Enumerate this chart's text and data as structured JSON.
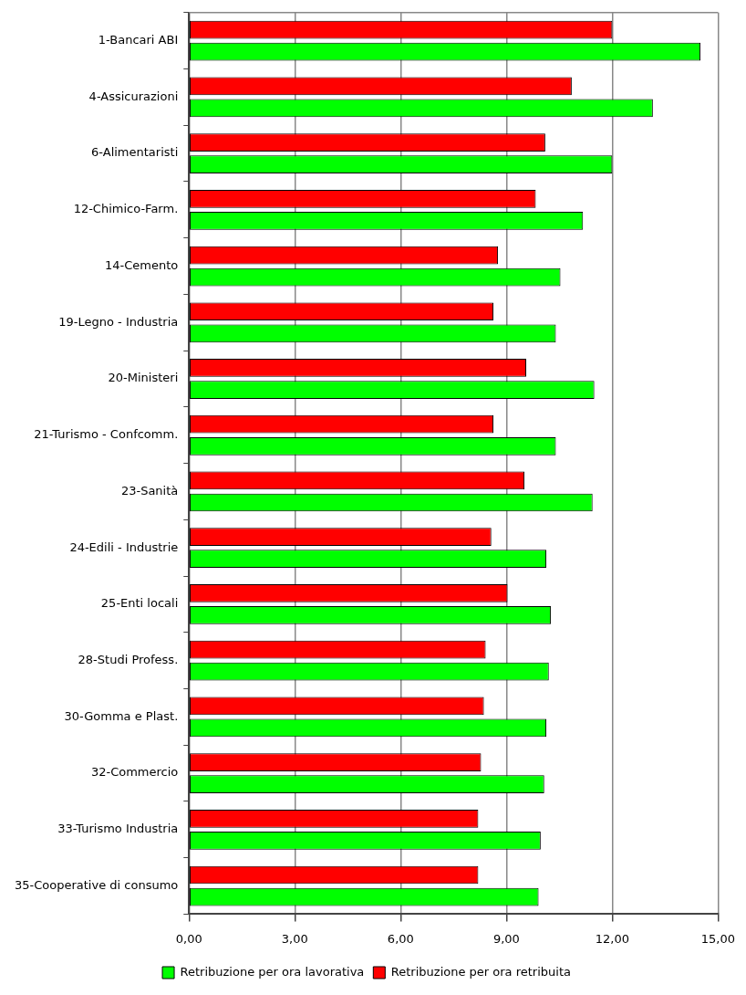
{
  "chart_data": {
    "type": "bar",
    "orientation": "horizontal",
    "categories": [
      "1-Bancari ABI",
      "4-Assicurazioni",
      "6-Alimentaristi",
      "12-Chimico-Farm.",
      "14-Cemento",
      "19-Legno - Industria",
      "20-Ministeri",
      "21-Turismo - Confcomm.",
      "23-Sanità",
      "24-Edili - Industrie",
      "25-Enti locali",
      "28-Studi Profess.",
      "30-Gomma e Plast.",
      "32-Commercio",
      "33-Turismo Industria",
      "35-Cooperative di consumo"
    ],
    "series": [
      {
        "name": "Retribuzione per ora retribuita",
        "color": "#ff0000",
        "values": [
          12.0,
          10.85,
          10.1,
          9.83,
          8.76,
          8.63,
          9.56,
          8.63,
          9.51,
          8.57,
          9.03,
          8.41,
          8.36,
          8.28,
          8.2,
          8.2
        ]
      },
      {
        "name": "Retribuzione per ora lavorativa",
        "color": "#00ff00",
        "values": [
          14.5,
          13.15,
          12.0,
          11.17,
          10.53,
          10.4,
          11.49,
          10.4,
          11.44,
          10.13,
          10.26,
          10.2,
          10.13,
          10.07,
          9.97,
          9.91
        ]
      }
    ],
    "xlim": [
      0,
      15
    ],
    "xticks": [
      {
        "value": 0,
        "label": "0,00"
      },
      {
        "value": 3,
        "label": "3,00"
      },
      {
        "value": 6,
        "label": "6,00"
      },
      {
        "value": 9,
        "label": "9,00"
      },
      {
        "value": 12,
        "label": "12,00"
      },
      {
        "value": 15,
        "label": "15,00"
      }
    ],
    "grid": "x",
    "legend": "bottom"
  }
}
